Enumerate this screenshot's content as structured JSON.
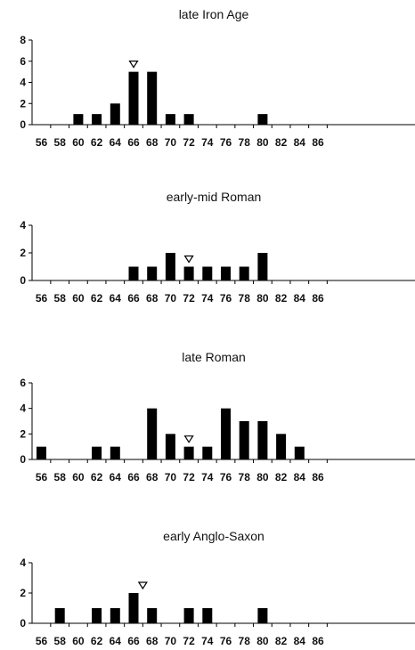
{
  "chart_data": [
    {
      "type": "bar",
      "title": "late Iron Age",
      "categories": [
        "56",
        "58",
        "60",
        "62",
        "64",
        "66",
        "68",
        "70",
        "72",
        "74",
        "76",
        "78",
        "80",
        "82",
        "84",
        "86"
      ],
      "values": [
        0,
        0,
        1,
        1,
        2,
        5,
        5,
        1,
        1,
        0,
        0,
        0,
        1,
        0,
        0,
        0
      ],
      "ylim": [
        0,
        8
      ],
      "yticks": [
        "0",
        "2",
        "4",
        "6",
        "8"
      ],
      "marker_x": 66,
      "grid": false,
      "legend": "none"
    },
    {
      "type": "bar",
      "title": "early-mid Roman",
      "categories": [
        "56",
        "58",
        "60",
        "62",
        "64",
        "66",
        "68",
        "70",
        "72",
        "74",
        "76",
        "78",
        "80",
        "82",
        "84",
        "86"
      ],
      "values": [
        0,
        0,
        0,
        0,
        0,
        1,
        1,
        2,
        1,
        1,
        1,
        1,
        2,
        0,
        0,
        0
      ],
      "ylim": [
        0,
        4
      ],
      "yticks": [
        "0",
        "2",
        "4"
      ],
      "marker_x": 72,
      "grid": false,
      "legend": "none"
    },
    {
      "type": "bar",
      "title": "late Roman",
      "categories": [
        "56",
        "58",
        "60",
        "62",
        "64",
        "66",
        "68",
        "70",
        "72",
        "74",
        "76",
        "78",
        "80",
        "82",
        "84",
        "86"
      ],
      "values": [
        1,
        0,
        0,
        1,
        1,
        0,
        4,
        2,
        1,
        1,
        4,
        3,
        3,
        2,
        1,
        0
      ],
      "ylim": [
        0,
        6
      ],
      "yticks": [
        "0",
        "2",
        "4",
        "6"
      ],
      "marker_x": 72,
      "grid": false,
      "legend": "none"
    },
    {
      "type": "bar",
      "title": "early Anglo-Saxon",
      "categories": [
        "56",
        "58",
        "60",
        "62",
        "64",
        "66",
        "68",
        "70",
        "72",
        "74",
        "76",
        "78",
        "80",
        "82",
        "84",
        "86"
      ],
      "values": [
        0,
        1,
        0,
        1,
        1,
        2,
        1,
        0,
        1,
        1,
        0,
        0,
        1,
        0,
        0,
        0
      ],
      "ylim": [
        0,
        4
      ],
      "yticks": [
        "0",
        "2",
        "4"
      ],
      "marker_x": 67,
      "grid": false,
      "legend": "none"
    }
  ]
}
